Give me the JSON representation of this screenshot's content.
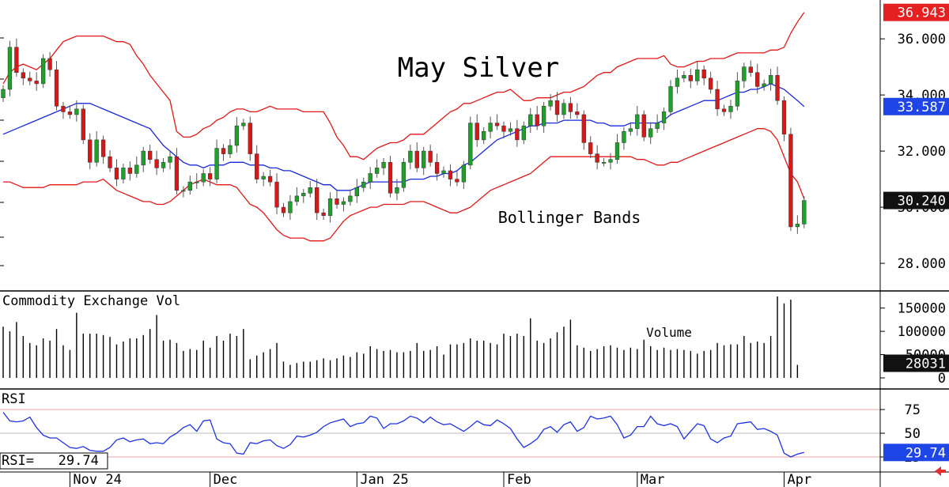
{
  "chart_data": {
    "type": "candlestick",
    "title": "May Silver",
    "x_tick_labels": [
      "Nov 24",
      "Dec",
      "Jan 25",
      "Feb",
      "Mar",
      "Apr"
    ],
    "price_panel": {
      "y_ticks": [
        "36.000",
        "34.000",
        "32.000",
        "30.000",
        "28.000"
      ],
      "ylim": [
        27.1,
        37.3
      ],
      "annotation": "Bollinger Bands",
      "last_labels": {
        "upper_band": "36.943",
        "middle_band": "33.587",
        "last_price": "30.240"
      },
      "closes": [
        34.2,
        35.7,
        34.8,
        34.6,
        34.5,
        34.4,
        35.3,
        34.9,
        33.6,
        33.4,
        33.3,
        33.5,
        32.4,
        31.6,
        32.4,
        31.8,
        31.4,
        31.0,
        31.4,
        31.2,
        31.5,
        32.0,
        31.7,
        31.4,
        31.6,
        31.8,
        30.6,
        30.6,
        30.9,
        30.9,
        31.2,
        31.0,
        32.1,
        31.9,
        32.2,
        32.9,
        33.0,
        31.9,
        31.0,
        31.1,
        30.9,
        30.0,
        29.8,
        30.2,
        30.4,
        30.5,
        30.7,
        29.8,
        29.7,
        30.3,
        30.1,
        30.2,
        30.4,
        30.7,
        30.9,
        31.2,
        31.4,
        31.6,
        30.5,
        30.7,
        31.6,
        32.0,
        31.4,
        32.0,
        31.6,
        31.2,
        31.3,
        31.0,
        30.9,
        31.5,
        33.0,
        32.4,
        32.7,
        33.0,
        32.9,
        32.7,
        32.8,
        32.4,
        32.9,
        33.3,
        32.9,
        33.6,
        33.8,
        33.3,
        33.7,
        33.4,
        33.3,
        32.3,
        31.9,
        31.6,
        31.6,
        31.7,
        32.3,
        32.7,
        32.8,
        33.3,
        32.5,
        32.8,
        33.0,
        33.4,
        34.3,
        34.6,
        34.7,
        34.5,
        34.9,
        34.6,
        34.2,
        33.5,
        33.4,
        33.6,
        34.5,
        35.0,
        34.8,
        34.3,
        34.4,
        34.7,
        33.8,
        32.6,
        29.3,
        29.4,
        30.24
      ],
      "upper_band": [
        34.4,
        34.8,
        35.0,
        35.1,
        35.0,
        34.9,
        35.1,
        35.3,
        35.6,
        35.9,
        36.0,
        36.1,
        36.1,
        36.1,
        36.1,
        36.1,
        36.0,
        35.9,
        35.9,
        35.8,
        35.4,
        35.1,
        34.7,
        34.4,
        34.1,
        33.8,
        32.7,
        32.5,
        32.5,
        32.6,
        32.8,
        32.9,
        33.1,
        33.2,
        33.4,
        33.5,
        33.5,
        33.4,
        33.4,
        33.5,
        33.6,
        33.5,
        33.5,
        33.5,
        33.5,
        33.4,
        33.4,
        33.4,
        33.4,
        33.0,
        32.5,
        32.2,
        31.8,
        31.8,
        31.7,
        31.9,
        32.1,
        32.2,
        32.3,
        32.3,
        32.4,
        32.6,
        32.6,
        32.6,
        32.8,
        33.0,
        33.2,
        33.4,
        33.5,
        33.7,
        33.7,
        33.8,
        33.9,
        34.0,
        34.1,
        34.1,
        34.2,
        34.0,
        33.8,
        33.8,
        33.9,
        33.9,
        33.9,
        34.0,
        34.1,
        34.1,
        34.2,
        34.3,
        34.5,
        34.7,
        34.8,
        34.8,
        35.0,
        35.1,
        35.2,
        35.3,
        35.3,
        35.3,
        35.3,
        35.4,
        35.1,
        35.0,
        35.0,
        35.1,
        35.2,
        35.2,
        35.3,
        35.3,
        35.3,
        35.4,
        35.5,
        35.5,
        35.5,
        35.5,
        35.5,
        35.6,
        35.6,
        35.7,
        36.2,
        36.6,
        36.943
      ],
      "middle_band": [
        32.6,
        32.7,
        32.8,
        32.9,
        33.0,
        33.1,
        33.2,
        33.3,
        33.4,
        33.5,
        33.6,
        33.7,
        33.7,
        33.7,
        33.6,
        33.5,
        33.4,
        33.3,
        33.2,
        33.1,
        33.0,
        32.9,
        32.8,
        32.5,
        32.2,
        32.0,
        31.8,
        31.6,
        31.5,
        31.5,
        31.4,
        31.5,
        31.5,
        31.5,
        31.6,
        31.6,
        31.6,
        31.5,
        31.5,
        31.5,
        31.4,
        31.4,
        31.3,
        31.3,
        31.2,
        31.1,
        31.0,
        30.9,
        30.8,
        30.8,
        30.6,
        30.6,
        30.6,
        30.7,
        30.8,
        30.9,
        30.9,
        30.9,
        30.9,
        30.9,
        30.9,
        31.0,
        31.0,
        31.0,
        31.1,
        31.1,
        31.2,
        31.2,
        31.3,
        31.5,
        31.6,
        31.8,
        32.0,
        32.2,
        32.4,
        32.5,
        32.6,
        32.7,
        32.8,
        32.9,
        32.9,
        33.0,
        33.0,
        33.0,
        33.1,
        33.1,
        33.1,
        33.1,
        33.1,
        33.0,
        33.0,
        32.9,
        32.9,
        32.9,
        33.0,
        33.0,
        33.0,
        33.0,
        33.0,
        33.1,
        33.3,
        33.4,
        33.5,
        33.6,
        33.7,
        33.8,
        33.8,
        33.8,
        33.9,
        34.0,
        34.1,
        34.1,
        34.2,
        34.2,
        34.3,
        34.4,
        34.3,
        34.2,
        34.0,
        33.8,
        33.587
      ],
      "lower_band": [
        30.9,
        30.9,
        30.8,
        30.7,
        30.7,
        30.7,
        30.7,
        30.8,
        30.8,
        30.8,
        30.8,
        30.8,
        30.9,
        30.9,
        30.9,
        31.0,
        30.8,
        30.6,
        30.5,
        30.4,
        30.3,
        30.2,
        30.2,
        30.1,
        30.1,
        30.2,
        30.4,
        30.6,
        30.8,
        30.9,
        31.0,
        30.9,
        30.8,
        30.8,
        30.8,
        30.7,
        30.4,
        30.1,
        30.0,
        29.8,
        29.5,
        29.2,
        29.0,
        28.9,
        28.9,
        28.9,
        28.8,
        28.8,
        28.8,
        28.9,
        29.2,
        29.5,
        29.7,
        29.8,
        29.9,
        30.0,
        30.0,
        30.1,
        30.1,
        30.1,
        30.1,
        30.2,
        30.2,
        30.2,
        30.1,
        30.0,
        29.9,
        29.8,
        29.8,
        29.9,
        30.0,
        30.2,
        30.4,
        30.6,
        30.7,
        30.8,
        30.9,
        31.0,
        31.1,
        31.2,
        31.4,
        31.6,
        31.8,
        31.8,
        31.8,
        31.8,
        31.8,
        31.8,
        31.8,
        31.8,
        31.8,
        31.8,
        31.8,
        31.8,
        31.8,
        31.7,
        31.7,
        31.6,
        31.5,
        31.5,
        31.6,
        31.6,
        31.7,
        31.8,
        31.9,
        32.0,
        32.1,
        32.2,
        32.3,
        32.4,
        32.5,
        32.6,
        32.7,
        32.8,
        32.8,
        32.7,
        32.4,
        31.8,
        31.2,
        30.9,
        30.3
      ]
    },
    "volume_panel": {
      "label": "Commodity Exchange Vol",
      "annotation": "Volume",
      "y_ticks": [
        "150000",
        "100000",
        "50000",
        "0"
      ],
      "ylim": [
        0,
        180000
      ],
      "last_label": "28031",
      "values": [
        110000,
        100000,
        120000,
        90000,
        75000,
        70000,
        85000,
        80000,
        105000,
        70000,
        60000,
        140000,
        95000,
        95000,
        95000,
        92000,
        88000,
        72000,
        78000,
        85000,
        85000,
        92000,
        105000,
        135000,
        80000,
        82000,
        75000,
        58000,
        62000,
        60000,
        80000,
        65000,
        90000,
        80000,
        95000,
        90000,
        105000,
        40000,
        48000,
        55000,
        62000,
        75000,
        35000,
        28000,
        32000,
        35000,
        35000,
        38000,
        42000,
        38000,
        42000,
        48000,
        45000,
        55000,
        52000,
        68000,
        62000,
        58000,
        60000,
        55000,
        55000,
        58000,
        75000,
        58000,
        60000,
        68000,
        50000,
        72000,
        72000,
        75000,
        85000,
        80000,
        80000,
        75000,
        72000,
        95000,
        90000,
        95000,
        90000,
        128000,
        80000,
        75000,
        85000,
        98000,
        110000,
        125000,
        70000,
        65000,
        58000,
        62000,
        68000,
        70000,
        65000,
        60000,
        65000,
        62000,
        82000,
        68000,
        60000,
        65000,
        60000,
        62000,
        60000,
        58000,
        52000,
        58000,
        60000,
        75000,
        70000,
        72000,
        72000,
        90000,
        75000,
        78000,
        75000,
        90000,
        175000,
        160000,
        168000,
        28031
      ]
    },
    "rsi_panel": {
      "label": "RSI",
      "y_ticks": [
        "75",
        "50",
        "25"
      ],
      "ylim": [
        10,
        95
      ],
      "readout": "RSI=   29.74",
      "last_label": "29.74",
      "values": [
        72,
        63,
        62,
        63,
        67,
        56,
        48,
        45,
        45,
        40,
        35,
        34,
        36,
        32,
        31,
        31,
        35,
        43,
        45,
        41,
        43,
        44,
        39,
        40,
        39,
        46,
        50,
        56,
        59,
        52,
        63,
        64,
        44,
        40,
        39,
        29,
        28,
        40,
        39,
        42,
        43,
        37,
        34,
        38,
        47,
        46,
        48,
        51,
        57,
        61,
        63,
        65,
        57,
        60,
        61,
        68,
        66,
        55,
        60,
        60,
        63,
        68,
        66,
        61,
        67,
        62,
        59,
        60,
        56,
        52,
        57,
        63,
        59,
        58,
        64,
        60,
        55,
        44,
        35,
        39,
        44,
        54,
        57,
        51,
        59,
        62,
        52,
        56,
        68,
        65,
        66,
        68,
        59,
        45,
        48,
        57,
        57,
        68,
        60,
        58,
        60,
        57,
        44,
        52,
        60,
        58,
        44,
        40,
        45,
        47,
        60,
        61,
        62,
        54,
        55,
        52,
        48,
        29,
        25,
        28,
        29.74
      ]
    },
    "colors": {
      "up": "#1fa02a",
      "down": "#d81818",
      "band": "#e01818",
      "middle": "#1828dc",
      "rsi": "#1e32e0",
      "upper_label_bg": "#e52020",
      "middle_label_bg": "#1e46e6",
      "last_label_bg": "#111111",
      "arrow": "#e03030"
    },
    "grid": false,
    "legend": "none"
  }
}
